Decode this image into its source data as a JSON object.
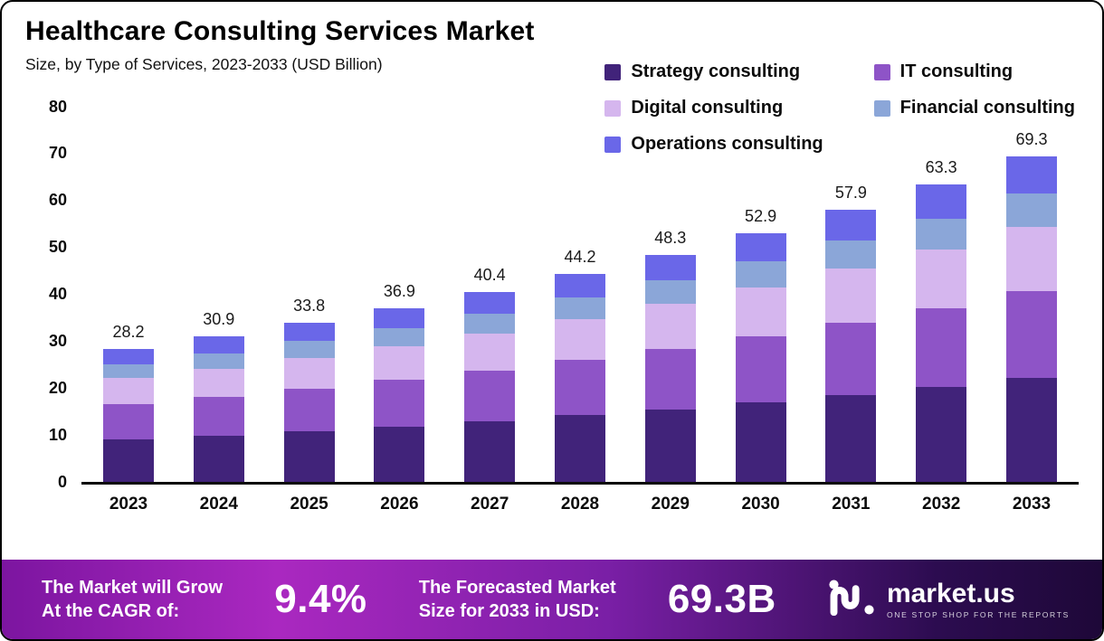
{
  "header": {
    "title": "Healthcare Consulting Services Market",
    "subtitle": "Size, by Type of Services, 2023-2033 (USD Billion)"
  },
  "chart_data": {
    "type": "bar",
    "stacked": true,
    "title": "Healthcare Consulting Services Market",
    "categories": [
      "2023",
      "2024",
      "2025",
      "2026",
      "2027",
      "2028",
      "2029",
      "2030",
      "2031",
      "2032",
      "2033"
    ],
    "totals": [
      28.2,
      30.9,
      33.8,
      36.9,
      40.4,
      44.2,
      48.3,
      52.9,
      57.9,
      63.3,
      69.3
    ],
    "series": [
      {
        "name": "Strategy consulting",
        "color": "#41237a",
        "values": [
          9.0,
          9.8,
          10.7,
          11.7,
          12.8,
          14.1,
          15.4,
          16.8,
          18.4,
          20.1,
          22.0
        ]
      },
      {
        "name": "IT consulting",
        "color": "#8e54c7",
        "values": [
          7.5,
          8.2,
          9.0,
          9.9,
          10.8,
          11.8,
          12.9,
          14.1,
          15.5,
          16.9,
          18.5
        ]
      },
      {
        "name": "Digital consulting",
        "color": "#d5b6ee",
        "values": [
          5.6,
          6.1,
          6.7,
          7.3,
          8.0,
          8.7,
          9.6,
          10.5,
          11.5,
          12.5,
          13.7
        ]
      },
      {
        "name": "Financial consulting",
        "color": "#8ba6d8",
        "values": [
          2.9,
          3.2,
          3.5,
          3.8,
          4.2,
          4.6,
          5.0,
          5.5,
          6.0,
          6.6,
          7.2
        ]
      },
      {
        "name": "Operations consulting",
        "color": "#6a67e8",
        "values": [
          3.2,
          3.6,
          3.9,
          4.2,
          4.6,
          5.0,
          5.4,
          6.0,
          6.5,
          7.2,
          7.9
        ]
      }
    ],
    "xlabel": "",
    "ylabel": "",
    "ylim": [
      0,
      80
    ],
    "yticks": [
      0,
      10,
      20,
      30,
      40,
      50,
      60,
      70,
      80
    ],
    "grid": false,
    "legend_position": "top-right"
  },
  "banner": {
    "cagr_label_line1": "The Market will Grow",
    "cagr_label_line2": "At the CAGR of:",
    "cagr_value": "9.4%",
    "forecast_label_line1": "The Forecasted Market",
    "forecast_label_line2": "Size for 2033 in USD:",
    "forecast_value": "69.3B",
    "brand_name": "market.us",
    "brand_tagline": "ONE STOP SHOP FOR THE REPORTS"
  }
}
